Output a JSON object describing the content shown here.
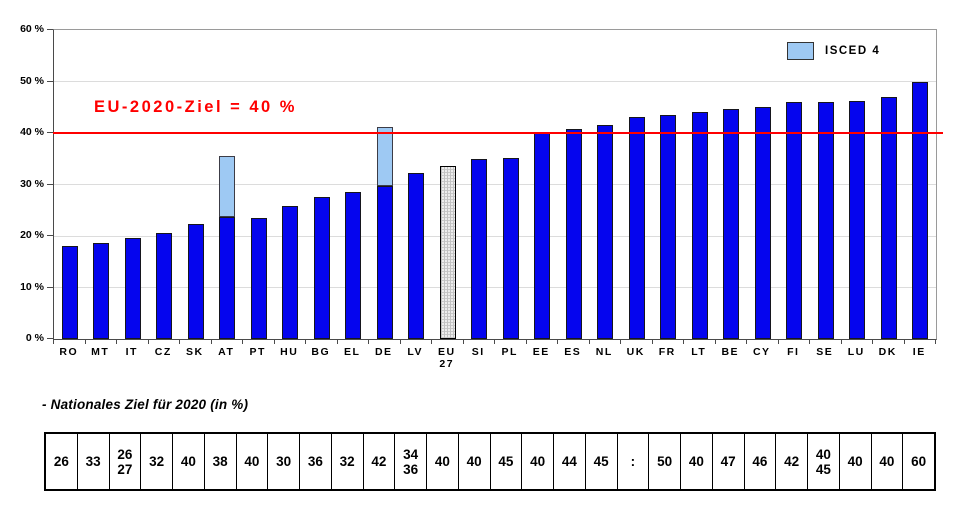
{
  "chart_data": {
    "type": "bar",
    "title": "",
    "ylabel": "",
    "xlabel": "",
    "ylim": [
      0,
      60
    ],
    "grid": "horizontal, every 10%",
    "yticks": [
      "0 %",
      "10 %",
      "20 %",
      "30 %",
      "40 %",
      "50 %",
      "60 %"
    ],
    "reference_line": {
      "value": 40,
      "label": "EU-2020-Ziel = 40 %",
      "color": "#ff0000"
    },
    "legend": {
      "position": "top-right inside plot",
      "entries": [
        {
          "label": "ISCED 4",
          "color": "#9ec9f3"
        }
      ]
    },
    "bars": [
      {
        "label": "RO",
        "value": 18.0
      },
      {
        "label": "MT",
        "value": 18.7
      },
      {
        "label": "IT",
        "value": 19.6
      },
      {
        "label": "CZ",
        "value": 20.5
      },
      {
        "label": "SK",
        "value": 22.3
      },
      {
        "label": "AT",
        "value": 23.6,
        "isced4_top": 35.5
      },
      {
        "label": "PT",
        "value": 23.5
      },
      {
        "label": "HU",
        "value": 25.8
      },
      {
        "label": "BG",
        "value": 27.6
      },
      {
        "label": "EL",
        "value": 28.5
      },
      {
        "label": "DE",
        "value": 29.8,
        "isced4_top": 41.2
      },
      {
        "label": "LV",
        "value": 32.3
      },
      {
        "label": "EU\n27",
        "value": 33.5,
        "hatched": true
      },
      {
        "label": "SI",
        "value": 34.9
      },
      {
        "label": "PL",
        "value": 35.2
      },
      {
        "label": "EE",
        "value": 40.0
      },
      {
        "label": "ES",
        "value": 40.7
      },
      {
        "label": "NL",
        "value": 41.5
      },
      {
        "label": "UK",
        "value": 43.2
      },
      {
        "label": "FR",
        "value": 43.5
      },
      {
        "label": "LT",
        "value": 44.0
      },
      {
        "label": "BE",
        "value": 44.6
      },
      {
        "label": "CY",
        "value": 45.0
      },
      {
        "label": "FI",
        "value": 46.0
      },
      {
        "label": "SE",
        "value": 46.0
      },
      {
        "label": "LU",
        "value": 46.2
      },
      {
        "label": "DK",
        "value": 47.0
      },
      {
        "label": "IE",
        "value": 50.0
      }
    ],
    "colors": {
      "bar_fill": "#0505ee",
      "isced4_fill": "#9ec9f3",
      "eu_hatch_fill": "#ededed",
      "reference": "#ff0000",
      "gridline": "#dcdcdc"
    }
  },
  "table": {
    "caption": "- Nationales Ziel für 2020 (in %)",
    "values": [
      "26",
      "33",
      "26\n27",
      "32",
      "40",
      "38",
      "40",
      "30",
      "36",
      "32",
      "42",
      "34\n36",
      "40",
      "40",
      "45",
      "40",
      "44",
      "45",
      ":",
      "50",
      "40",
      "47",
      "46",
      "42",
      "40\n45",
      "40",
      "40",
      "60"
    ]
  }
}
